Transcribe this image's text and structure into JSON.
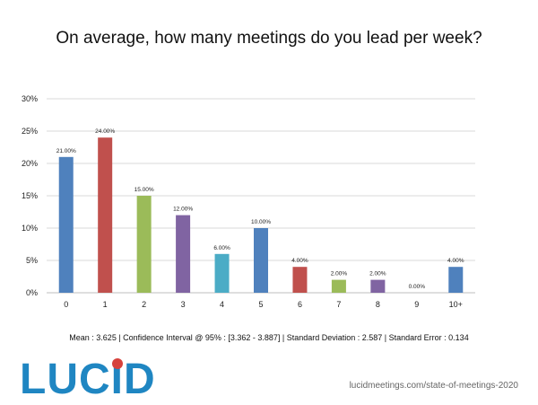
{
  "title": "On average, how many meetings do you lead per week?",
  "stats": "Mean : 3.625  |  Confidence Interval @ 95% : [3.362 - 3.887]  |  Standard Deviation : 2.587  |  Standard Error : 0.134",
  "logo": {
    "text": "LUCID",
    "letters": [
      "L",
      "U",
      "C",
      "I",
      "D"
    ],
    "color": "#1f86c2",
    "accent_color": "#d6423c"
  },
  "source": "lucidmeetings.com/state-of-meetings-2020",
  "chart_data": {
    "type": "bar",
    "title": "On average, how many meetings do you lead per week?",
    "xlabel": "",
    "ylabel": "",
    "categories": [
      "0",
      "1",
      "2",
      "3",
      "4",
      "5",
      "6",
      "7",
      "8",
      "9",
      "10+"
    ],
    "values": [
      21,
      24,
      15,
      12,
      6,
      10,
      4,
      2,
      2,
      0,
      4
    ],
    "data_labels": [
      "21.00%",
      "24.00%",
      "15.00%",
      "12.00%",
      "6.00%",
      "10.00%",
      "4.00%",
      "2.00%",
      "2.00%",
      "0.00%",
      "4.00%"
    ],
    "bar_colors": [
      "#4f81bd",
      "#c0504d",
      "#9bbb59",
      "#8064a2",
      "#4bacc6",
      "#4f81bd",
      "#c0504d",
      "#9bbb59",
      "#8064a2",
      "#4bacc6",
      "#4f81bd"
    ],
    "ylim": [
      0,
      30
    ],
    "yticks": [
      0,
      5,
      10,
      15,
      20,
      25,
      30
    ],
    "ytick_labels": [
      "0%",
      "5%",
      "10%",
      "15%",
      "20%",
      "25%",
      "30%"
    ],
    "grid": true,
    "legend": "none"
  }
}
